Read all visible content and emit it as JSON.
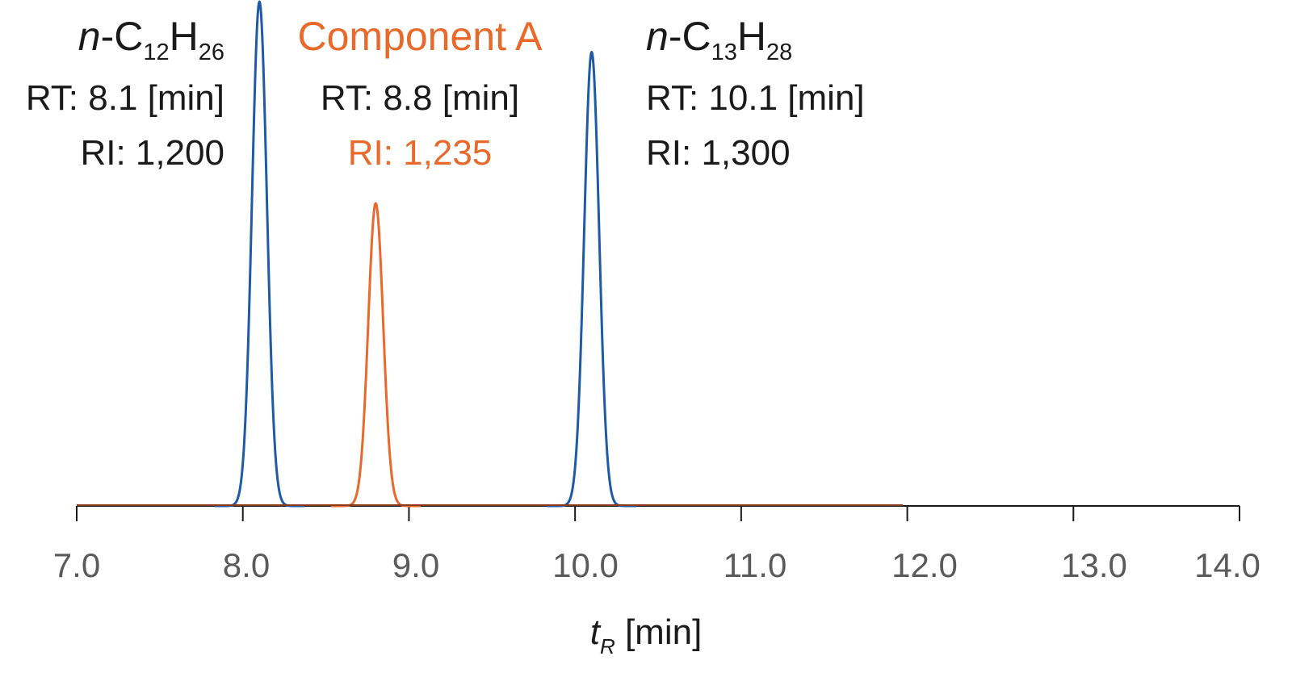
{
  "chart_data": {
    "type": "line",
    "xlabel": {
      "main": "t",
      "sub": "R",
      "unit": " [min]"
    },
    "xlim": [
      7.0,
      14.0
    ],
    "x_ticks": [
      "7.0",
      "8.0",
      "9.0",
      "10.0",
      "11.0",
      "12.0",
      "13.0",
      "14.0"
    ],
    "x_tick_values": [
      7,
      8,
      9,
      10,
      11,
      12,
      13,
      14
    ],
    "grid": false,
    "series": [
      {
        "name": "n-C12H26",
        "color": "#1f5aa6",
        "peak_x": 8.1,
        "relative_height": 1.0,
        "width_min": 0.045
      },
      {
        "name": "Component A",
        "color": "#e8692a",
        "peak_x": 8.8,
        "relative_height": 0.6,
        "width_min": 0.045
      },
      {
        "name": "n-C13H28",
        "color": "#1f5aa6",
        "peak_x": 10.1,
        "relative_height": 0.9,
        "width_min": 0.045
      }
    ],
    "annotations": {
      "c12": {
        "prefix": "n",
        "dash": "-",
        "el1": "C",
        "n1": "12",
        "el2": "H",
        "n2": "26",
        "rt": "RT: 8.1 [min]",
        "ri": "RI: 1,200"
      },
      "compA": {
        "name": "Component A",
        "rt": "RT: 8.8 [min]",
        "ri": "RI: 1,235"
      },
      "c13": {
        "prefix": "n",
        "dash": "-",
        "el1": "C",
        "n1": "13",
        "el2": "H",
        "n2": "28",
        "rt": "RT: 10.1 [min]",
        "ri": "RI: 1,300"
      }
    },
    "colors": {
      "hydrocarbon": "#1f5aa6",
      "component": "#e8692a",
      "axis": "#1a1a1a",
      "baseline": "#8a3a1a",
      "tick_label": "#5a5a5a"
    }
  }
}
